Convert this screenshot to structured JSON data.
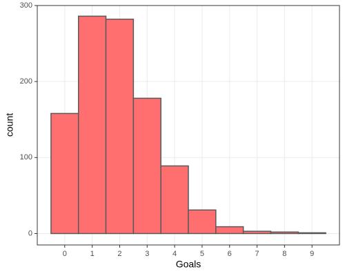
{
  "chart_data": {
    "type": "histogram",
    "x_label": "Goals",
    "y_label": "count",
    "bins": [
      -0.5,
      0.5,
      1.5,
      2.5,
      3.5,
      4.5,
      5.5,
      6.5,
      7.5,
      8.5,
      9.5
    ],
    "counts": [
      158,
      286,
      282,
      178,
      89,
      31,
      9,
      3,
      2,
      1
    ],
    "color": "#ff6f6f",
    "edge_color": "#595959",
    "xlim": [
      -1,
      10
    ],
    "xticks": [
      0,
      1,
      2,
      3,
      4,
      5,
      6,
      7,
      8,
      9
    ],
    "ylim": [
      -15,
      300
    ],
    "yticks": [
      0,
      100,
      200,
      300
    ],
    "grid": true
  }
}
